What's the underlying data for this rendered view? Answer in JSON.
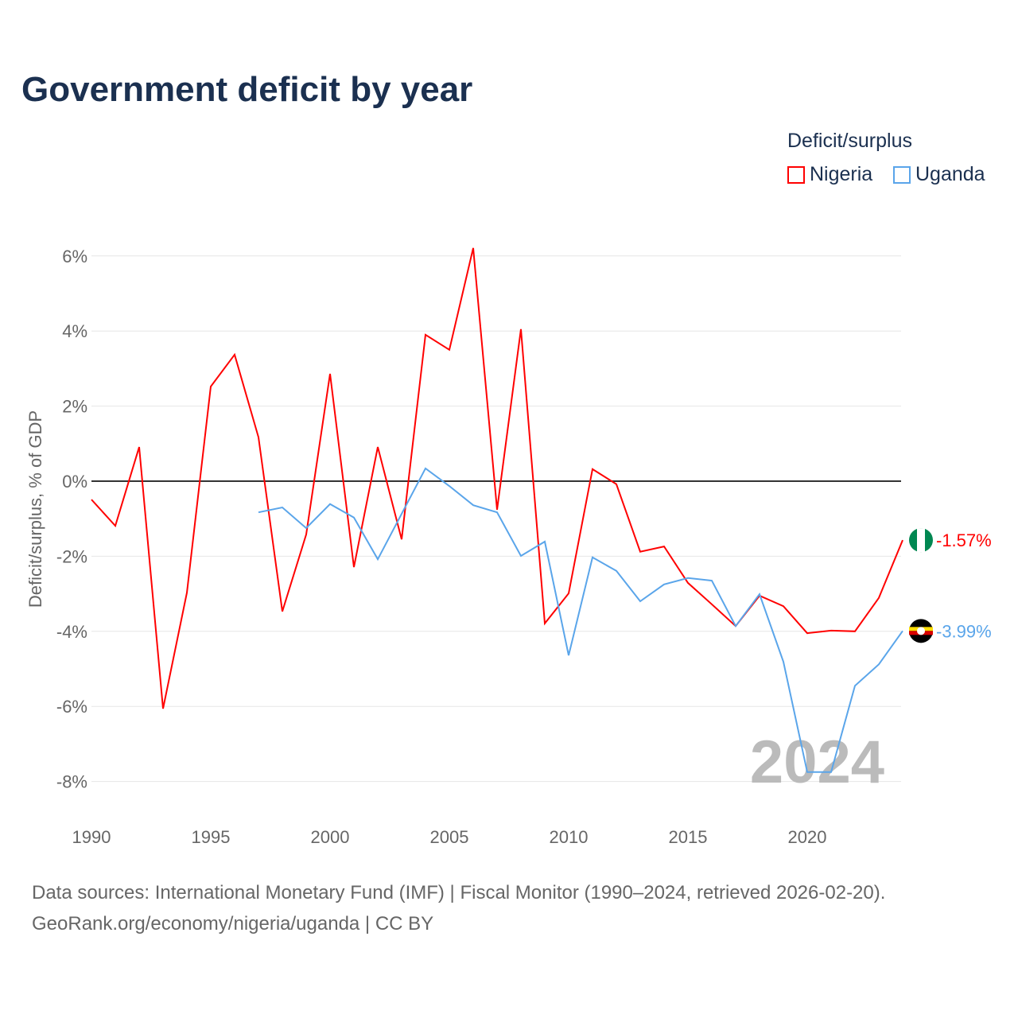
{
  "title": "Government deficit by year",
  "legend": {
    "title": "Deficit/surplus",
    "items": [
      {
        "name": "Nigeria",
        "color": "#ff0000"
      },
      {
        "name": "Uganda",
        "color": "#5aa5ea"
      }
    ]
  },
  "footer": {
    "line1": "Data sources: International Monetary Fund (IMF) | Fiscal Monitor (1990–2024, retrieved 2026-02-20).",
    "line2": "GeoRank.org/economy/nigeria/uganda | CC BY"
  },
  "chart_data": {
    "type": "line",
    "title": "Government deficit by year",
    "ylabel": "Deficit/surplus, % of GDP",
    "xlabel": "",
    "xlim": [
      1990,
      2024
    ],
    "ylim": [
      -9,
      6.5
    ],
    "xticks": [
      1990,
      1995,
      2000,
      2005,
      2010,
      2015,
      2020
    ],
    "xtick_labels": [
      "1990",
      "1995",
      "2000",
      "2005",
      "2010",
      "2015",
      "2020"
    ],
    "yticks": [
      6,
      4,
      2,
      0,
      -2,
      -4,
      -6,
      -8
    ],
    "ytick_labels": [
      "6%",
      "4%",
      "2%",
      "0%",
      "-2%",
      "-4%",
      "-6%",
      "-8%"
    ],
    "watermark": "2024",
    "series": [
      {
        "name": "Nigeria",
        "color": "#ff0000",
        "end_label": "-1.57%",
        "x_start": 1990,
        "values": [
          -0.49,
          -1.19,
          0.91,
          -6.06,
          -2.97,
          2.52,
          3.37,
          1.17,
          -3.47,
          -1.42,
          2.86,
          -2.29,
          0.91,
          -1.55,
          3.9,
          3.5,
          6.21,
          -0.76,
          4.05,
          -3.79,
          -2.99,
          0.32,
          -0.08,
          -1.88,
          -1.74,
          -2.71,
          -3.28,
          -3.86,
          -3.05,
          -3.33,
          -4.05,
          -3.98,
          -4.0,
          -3.11,
          -1.57
        ]
      },
      {
        "name": "Uganda",
        "color": "#5aa5ea",
        "end_label": "-3.99%",
        "x_start": 1997,
        "values": [
          -0.83,
          -0.7,
          -1.25,
          -0.61,
          -0.97,
          -2.08,
          -0.87,
          0.34,
          -0.13,
          -0.64,
          -0.83,
          -1.99,
          -1.61,
          -4.64,
          -2.03,
          -2.39,
          -3.2,
          -2.75,
          -2.58,
          -2.65,
          -3.86,
          -3.01,
          -4.81,
          -7.75,
          -7.75,
          -5.45,
          -4.88,
          -3.99
        ]
      }
    ]
  }
}
